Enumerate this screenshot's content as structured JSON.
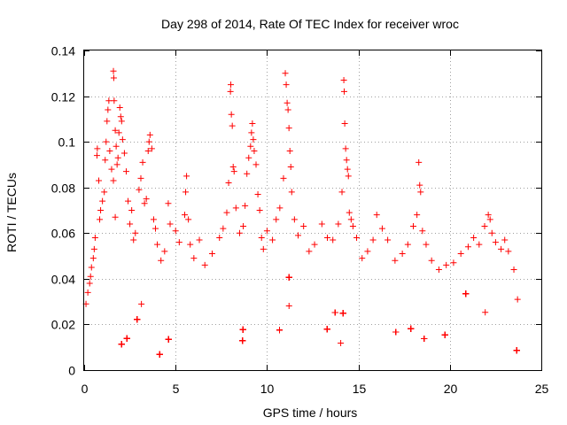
{
  "chart_data": {
    "type": "scatter",
    "title": "Day 298 of 2014, Rate Of TEC Index for receiver wroc",
    "xlabel": "GPS time / hours",
    "ylabel": "ROTI / TECUs",
    "xlim": [
      0,
      24
    ],
    "ylim": [
      0,
      0.14
    ],
    "xticks": [
      0,
      5,
      10,
      15,
      20,
      25
    ],
    "xtick_labels": [
      "0",
      "5",
      "10",
      "15",
      "20",
      "25"
    ],
    "yticks": [
      0,
      0.02,
      0.04,
      0.06,
      0.08,
      0.1,
      0.12,
      0.14
    ],
    "ytick_labels": [
      "0",
      "0.02",
      "0.04",
      "0.06",
      "0.08",
      "0.1",
      "0.12",
      "0.14"
    ],
    "grid": true,
    "marker": "+",
    "color": "#ff0000",
    "series": [
      {
        "name": "ROTI",
        "points": [
          [
            0.1,
            0.029
          ],
          [
            0.2,
            0.034
          ],
          [
            0.3,
            0.038
          ],
          [
            0.35,
            0.041
          ],
          [
            0.4,
            0.045
          ],
          [
            0.5,
            0.049
          ],
          [
            0.55,
            0.053
          ],
          [
            0.6,
            0.058
          ],
          [
            0.7,
            0.094
          ],
          [
            0.72,
            0.097
          ],
          [
            0.8,
            0.083
          ],
          [
            0.85,
            0.066
          ],
          [
            0.9,
            0.07
          ],
          [
            1.0,
            0.074
          ],
          [
            1.1,
            0.078
          ],
          [
            1.15,
            0.092
          ],
          [
            1.2,
            0.1
          ],
          [
            1.25,
            0.109
          ],
          [
            1.3,
            0.114
          ],
          [
            1.35,
            0.118
          ],
          [
            1.4,
            0.096
          ],
          [
            1.5,
            0.088
          ],
          [
            1.6,
            0.083
          ],
          [
            1.7,
            0.067
          ],
          [
            1.8,
            0.09
          ],
          [
            1.85,
            0.093
          ],
          [
            1.9,
            0.104
          ],
          [
            1.95,
            0.115
          ],
          [
            1.6,
            0.131
          ],
          [
            1.62,
            0.128
          ],
          [
            1.64,
            0.118
          ],
          [
            1.7,
            0.105
          ],
          [
            1.75,
            0.098
          ],
          [
            2.0,
            0.111
          ],
          [
            2.05,
            0.109
          ],
          [
            2.1,
            0.101
          ],
          [
            2.2,
            0.095
          ],
          [
            2.3,
            0.087
          ],
          [
            2.4,
            0.074
          ],
          [
            2.5,
            0.064
          ],
          [
            2.6,
            0.07
          ],
          [
            2.7,
            0.057
          ],
          [
            2.8,
            0.06
          ],
          [
            3.0,
            0.079
          ],
          [
            3.1,
            0.084
          ],
          [
            3.2,
            0.091
          ],
          [
            3.3,
            0.073
          ],
          [
            3.4,
            0.075
          ],
          [
            3.5,
            0.096
          ],
          [
            3.55,
            0.1
          ],
          [
            3.6,
            0.103
          ],
          [
            3.7,
            0.097
          ],
          [
            3.8,
            0.066
          ],
          [
            3.9,
            0.062
          ],
          [
            4.0,
            0.055
          ],
          [
            4.2,
            0.048
          ],
          [
            4.4,
            0.052
          ],
          [
            4.6,
            0.073
          ],
          [
            4.7,
            0.064
          ],
          [
            5.0,
            0.061
          ],
          [
            5.2,
            0.056
          ],
          [
            5.5,
            0.068
          ],
          [
            5.55,
            0.078
          ],
          [
            5.6,
            0.085
          ],
          [
            5.7,
            0.066
          ],
          [
            5.8,
            0.055
          ],
          [
            6.0,
            0.049
          ],
          [
            6.3,
            0.057
          ],
          [
            6.6,
            0.046
          ],
          [
            7.0,
            0.051
          ],
          [
            7.4,
            0.058
          ],
          [
            7.6,
            0.062
          ],
          [
            7.8,
            0.069
          ],
          [
            7.9,
            0.082
          ],
          [
            8.0,
            0.122
          ],
          [
            8.02,
            0.125
          ],
          [
            8.05,
            0.112
          ],
          [
            8.1,
            0.107
          ],
          [
            8.15,
            0.089
          ],
          [
            8.2,
            0.087
          ],
          [
            8.3,
            0.071
          ],
          [
            8.5,
            0.06
          ],
          [
            8.7,
            0.063
          ],
          [
            8.8,
            0.072
          ],
          [
            8.9,
            0.086
          ],
          [
            9.0,
            0.093
          ],
          [
            9.1,
            0.098
          ],
          [
            9.15,
            0.104
          ],
          [
            9.2,
            0.108
          ],
          [
            9.25,
            0.101
          ],
          [
            9.3,
            0.096
          ],
          [
            9.4,
            0.09
          ],
          [
            9.5,
            0.077
          ],
          [
            9.6,
            0.07
          ],
          [
            9.7,
            0.058
          ],
          [
            9.8,
            0.053
          ],
          [
            10.0,
            0.061
          ],
          [
            10.3,
            0.057
          ],
          [
            10.5,
            0.066
          ],
          [
            10.7,
            0.071
          ],
          [
            10.9,
            0.084
          ],
          [
            11.0,
            0.13
          ],
          [
            11.05,
            0.125
          ],
          [
            11.1,
            0.117
          ],
          [
            11.15,
            0.114
          ],
          [
            11.2,
            0.106
          ],
          [
            11.25,
            0.096
          ],
          [
            11.3,
            0.089
          ],
          [
            11.35,
            0.078
          ],
          [
            11.5,
            0.066
          ],
          [
            11.7,
            0.059
          ],
          [
            12.0,
            0.063
          ],
          [
            12.3,
            0.052
          ],
          [
            12.6,
            0.055
          ],
          [
            13.0,
            0.064
          ],
          [
            13.3,
            0.058
          ],
          [
            13.6,
            0.057
          ],
          [
            13.9,
            0.064
          ],
          [
            14.1,
            0.078
          ],
          [
            14.2,
            0.127
          ],
          [
            14.22,
            0.122
          ],
          [
            14.25,
            0.108
          ],
          [
            14.3,
            0.097
          ],
          [
            14.35,
            0.092
          ],
          [
            14.4,
            0.088
          ],
          [
            14.45,
            0.085
          ],
          [
            14.5,
            0.069
          ],
          [
            14.6,
            0.066
          ],
          [
            14.7,
            0.063
          ],
          [
            14.9,
            0.058
          ],
          [
            15.2,
            0.049
          ],
          [
            15.5,
            0.052
          ],
          [
            15.8,
            0.057
          ],
          [
            16.0,
            0.068
          ],
          [
            16.3,
            0.062
          ],
          [
            16.6,
            0.057
          ],
          [
            17.0,
            0.048
          ],
          [
            17.4,
            0.051
          ],
          [
            17.7,
            0.055
          ],
          [
            18.0,
            0.063
          ],
          [
            18.2,
            0.068
          ],
          [
            18.3,
            0.091
          ],
          [
            18.35,
            0.081
          ],
          [
            18.4,
            0.078
          ],
          [
            18.5,
            0.061
          ],
          [
            18.7,
            0.055
          ],
          [
            19.0,
            0.048
          ],
          [
            19.4,
            0.044
          ],
          [
            19.8,
            0.046
          ],
          [
            20.2,
            0.047
          ],
          [
            20.6,
            0.051
          ],
          [
            21.0,
            0.054
          ],
          [
            21.3,
            0.058
          ],
          [
            21.6,
            0.055
          ],
          [
            21.9,
            0.063
          ],
          [
            22.1,
            0.068
          ],
          [
            22.2,
            0.066
          ],
          [
            22.3,
            0.06
          ],
          [
            22.5,
            0.056
          ],
          [
            22.8,
            0.053
          ],
          [
            23.0,
            0.057
          ],
          [
            23.2,
            0.052
          ],
          [
            23.5,
            0.044
          ],
          [
            23.7,
            0.031
          ]
        ]
      }
    ]
  }
}
